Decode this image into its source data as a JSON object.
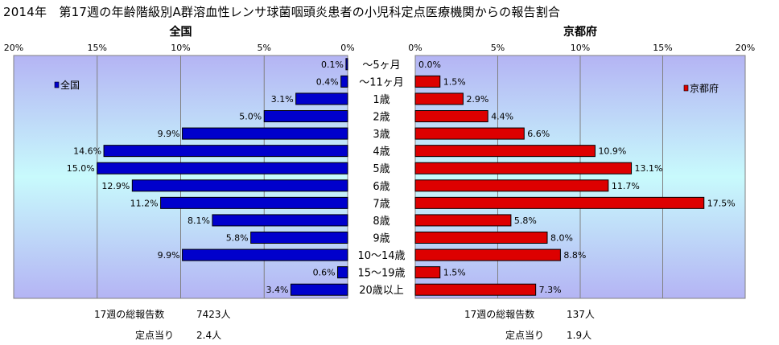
{
  "title": "2014年　第17週の年齢階級別A群溶血性レンサ球菌咽頭炎患者の小児科定点医療機関からの報告割合",
  "chart_data": {
    "type": "bar",
    "orientation": "horizontal",
    "categories": [
      "～5ヶ月",
      "～11ヶ月",
      "1歳",
      "2歳",
      "3歳",
      "4歳",
      "5歳",
      "6歳",
      "7歳",
      "8歳",
      "9歳",
      "10～14歳",
      "15～19歳",
      "20歳以上"
    ],
    "series": [
      {
        "name": "全国",
        "panel_title": "全国",
        "color": "#0000cc",
        "values": [
          0.1,
          0.4,
          3.1,
          5.0,
          9.9,
          14.6,
          15.0,
          12.9,
          11.2,
          8.1,
          5.8,
          9.9,
          0.6,
          3.4
        ],
        "labels": [
          "0.1%",
          "0.4%",
          "3.1%",
          "5.0%",
          "9.9%",
          "14.6%",
          "15.0%",
          "12.9%",
          "11.2%",
          "8.1%",
          "5.8%",
          "9.9%",
          "0.6%",
          "3.4%"
        ]
      },
      {
        "name": "京都府",
        "panel_title": "京都府",
        "color": "#dd0000",
        "values": [
          0.0,
          1.5,
          2.9,
          4.4,
          6.6,
          10.9,
          13.1,
          11.7,
          17.5,
          5.8,
          8.0,
          8.8,
          1.5,
          7.3
        ],
        "labels": [
          "0.0%",
          "1.5%",
          "2.9%",
          "4.4%",
          "6.6%",
          "10.9%",
          "13.1%",
          "11.7%",
          "17.5%",
          "5.8%",
          "8.0%",
          "8.8%",
          "1.5%",
          "7.3%"
        ]
      }
    ],
    "xlim": [
      0,
      20
    ],
    "ticks": [
      0,
      5,
      10,
      15,
      20
    ],
    "tick_labels": [
      "0%",
      "5%",
      "10%",
      "15%",
      "20%"
    ],
    "grid": true,
    "legend": {
      "left": "top-left",
      "right": "top-right"
    }
  },
  "footer": {
    "left": {
      "total_label": "17週の総報告数",
      "total_value": "7423人",
      "per_label": "定点当り",
      "per_value": "2.4人"
    },
    "right": {
      "total_label": "17週の総報告数",
      "total_value": "137人",
      "per_label": "定点当り",
      "per_value": "1.9人"
    }
  }
}
